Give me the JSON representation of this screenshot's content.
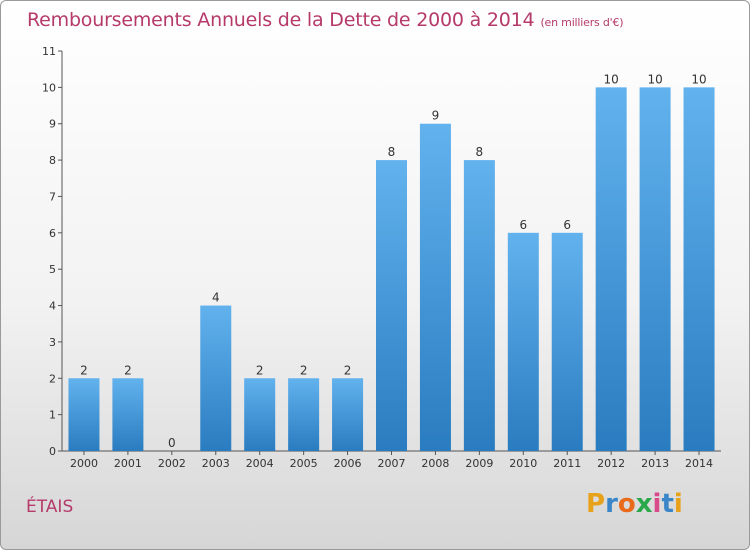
{
  "title": "Remboursements Annuels de la Dette de 2000 à 2014",
  "unit": "(en milliers d'€)",
  "commune": "ÉTAIS",
  "logo": {
    "letters": [
      "P",
      "r",
      "o",
      "x",
      "i",
      "t",
      "i"
    ],
    "colors": [
      "#e8a11a",
      "#3a86c8",
      "#e86a1a",
      "#2aa84a",
      "#d94a8a",
      "#3a86c8",
      "#e8a11a"
    ]
  },
  "colors": {
    "bar_top": "#62b2ee",
    "bar_bottom": "#2a7cc0",
    "title": "#b53a6a"
  },
  "chart_data": {
    "type": "bar",
    "categories": [
      "2000",
      "2001",
      "2002",
      "2003",
      "2004",
      "2005",
      "2006",
      "2007",
      "2008",
      "2009",
      "2010",
      "2011",
      "2012",
      "2013",
      "2014"
    ],
    "values": [
      2,
      2,
      0,
      4,
      2,
      2,
      2,
      8,
      9,
      8,
      6,
      6,
      10,
      10,
      10
    ],
    "yticks": [
      0,
      1,
      2,
      3,
      4,
      5,
      6,
      7,
      8,
      9,
      10,
      11
    ],
    "ylim": [
      0,
      11
    ],
    "grid": false
  }
}
